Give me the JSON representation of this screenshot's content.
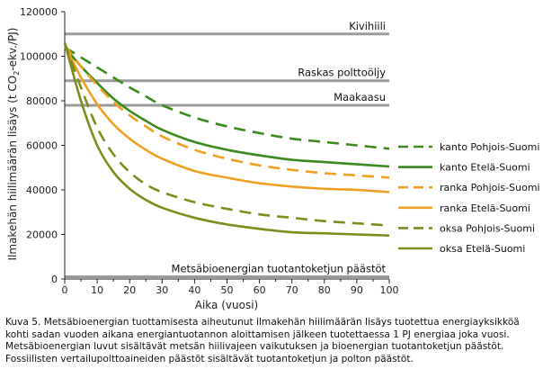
{
  "chart_data": {
    "type": "line",
    "ylabel": "Ilmakehän hiilimäärän lisäys (t CO₂-ekv./PJ)",
    "ylabel_main": "Ilmakehän hiilimäärän lisäys (t CO",
    "ylabel_sub": "2",
    "ylabel_end": "-ekv./PJ)",
    "xlabel": "Aika (vuosi)",
    "xlim": [
      0,
      100
    ],
    "ylim": [
      0,
      120000
    ],
    "xticks": [
      "0",
      "10",
      "20",
      "30",
      "40",
      "50",
      "60",
      "70",
      "80",
      "90",
      "100"
    ],
    "yticks": [
      "0",
      "20000",
      "40000",
      "60000",
      "80000",
      "100000",
      "120000"
    ],
    "reference_lines": [
      {
        "label": "Kivihiili",
        "value": 110000
      },
      {
        "label": "Raskas polttoöljy",
        "value": 89000
      },
      {
        "label": "Maakaasu",
        "value": 78000
      },
      {
        "label": "Metsäbioenergian tuotantoketjun päästöt",
        "value": 1000
      }
    ],
    "x": [
      0,
      5,
      10,
      15,
      20,
      25,
      30,
      40,
      50,
      60,
      70,
      80,
      90,
      100
    ],
    "series": [
      {
        "name": "kanto Pohjois-Suomi",
        "color": "#3a8a1e",
        "dashed": true,
        "values": [
          104000,
          99500,
          95000,
          90500,
          86000,
          82000,
          78000,
          72500,
          68500,
          65500,
          63000,
          61500,
          60000,
          58500
        ]
      },
      {
        "name": "kanto Etelä-Suomi",
        "color": "#3a8a1e",
        "dashed": false,
        "values": [
          104000,
          95500,
          88000,
          81000,
          75500,
          71000,
          67000,
          61500,
          58000,
          55500,
          53500,
          52500,
          51500,
          50500
        ]
      },
      {
        "name": "ranka Pohjois-Suomi",
        "color": "#f0a020",
        "dashed": true,
        "values": [
          105000,
          95500,
          87000,
          79500,
          73500,
          68500,
          64000,
          58000,
          54000,
          51000,
          49000,
          47500,
          46500,
          45500
        ]
      },
      {
        "name": "ranka Etelä-Suomi",
        "color": "#f0a020",
        "dashed": false,
        "values": [
          105000,
          90500,
          78500,
          69500,
          63000,
          58000,
          54000,
          48500,
          45500,
          43000,
          41500,
          40500,
          40000,
          39000
        ]
      },
      {
        "name": "oksa Pohjois-Suomi",
        "color": "#7f8c1c",
        "dashed": true,
        "values": [
          106000,
          86000,
          68000,
          56000,
          48000,
          42500,
          39000,
          34500,
          31500,
          29000,
          27500,
          26000,
          25000,
          24000
        ]
      },
      {
        "name": "oksa Etelä-Suomi",
        "color": "#7f8c1c",
        "dashed": false,
        "values": [
          106000,
          80000,
          60000,
          48000,
          40500,
          35500,
          32000,
          27500,
          24500,
          22500,
          21000,
          20500,
          20000,
          19500
        ]
      }
    ],
    "legend_position": "right"
  },
  "caption": "Kuva 5. Metsäbioenergian tuottamisesta aiheutunut ilmakehän hiilimäärän lisäys tuotettua energiayksikköä kohti sadan vuoden aikana energiantuotannon aloittamisen jälkeen tuotettaessa 1 PJ energiaa joka vuosi. Metsäbioenergian luvut sisältävät metsän hiilivajeen vaikutuksen ja bioenergian tuotantoketjun päästöt. Fossiilisten vertailupolttoaineiden päästöt sisältävät tuotantoketjun ja polton päästöt."
}
